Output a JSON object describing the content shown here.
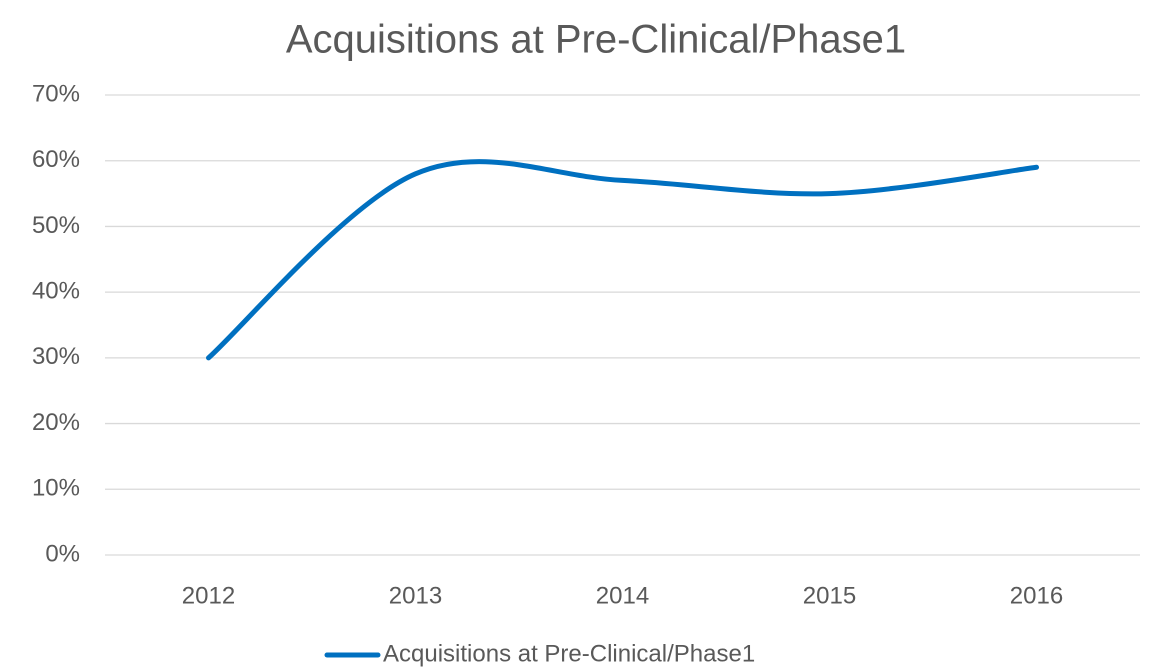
{
  "chart_data": {
    "type": "line",
    "title": "Acquisitions at Pre-Clinical/Phase1",
    "categories": [
      "2012",
      "2013",
      "2014",
      "2015",
      "2016"
    ],
    "series": [
      {
        "name": "Acquisitions at Pre-Clinical/Phase1",
        "color": "#0070c0",
        "values": [
          30,
          58,
          57,
          55,
          59
        ]
      }
    ],
    "ylim": [
      0,
      70
    ],
    "yticks": [
      {
        "value": 0,
        "label": "0%"
      },
      {
        "value": 10,
        "label": "10%"
      },
      {
        "value": 20,
        "label": "20%"
      },
      {
        "value": 30,
        "label": "30%"
      },
      {
        "value": 40,
        "label": "40%"
      },
      {
        "value": 50,
        "label": "50%"
      },
      {
        "value": 60,
        "label": "60%"
      },
      {
        "value": 70,
        "label": "70%"
      }
    ],
    "grid": true,
    "smooth": true,
    "legend": "bottom"
  }
}
